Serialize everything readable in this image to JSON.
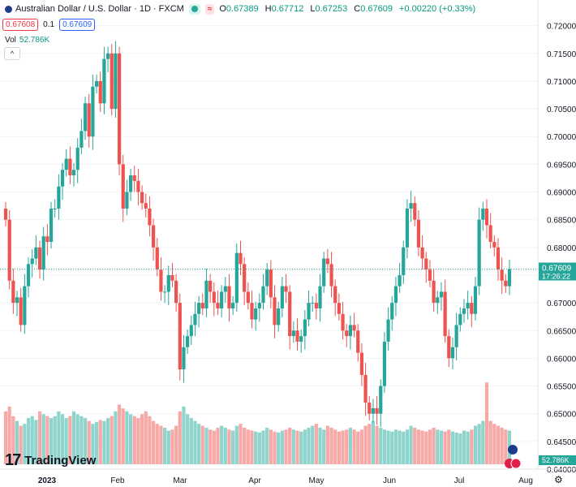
{
  "header": {
    "title": "Australian Dollar / U.S. Dollar · 1D · FXCM",
    "ohlc": [
      {
        "k": "O",
        "v": "0.67389"
      },
      {
        "k": "H",
        "v": "0.67712"
      },
      {
        "k": "L",
        "v": "0.67253"
      },
      {
        "k": "C",
        "v": "0.67609"
      },
      {
        "k": "",
        "v": "+0.00220 (+0.33%)"
      }
    ]
  },
  "trade": {
    "sell": "0.67608",
    "spread": "0.1",
    "buy": "0.67609"
  },
  "volume": {
    "label": "Vol",
    "value": "52.786K"
  },
  "colors": {
    "up": "#26a69a",
    "down": "#ef5350",
    "vol_up": "#8fd4cd",
    "vol_down": "#f7a9a7",
    "last": "#26a69a",
    "grid": "#f0f3fa"
  },
  "logo": {
    "text": "TradingView",
    "mark": "17"
  },
  "chart_data": {
    "type": "candlestick",
    "y_ticks": [
      "0.72000",
      "0.71500",
      "0.71000",
      "0.70500",
      "0.70000",
      "0.69500",
      "0.69000",
      "0.68500",
      "0.68000",
      "0.67500",
      "0.67000",
      "0.66500",
      "0.66000",
      "0.65500",
      "0.65000",
      "0.64500",
      "0.64000"
    ],
    "ylim": [
      0.64,
      0.722
    ],
    "x_labels": [
      "2023",
      "Feb",
      "Mar",
      "Apr",
      "May",
      "Jun",
      "Jul",
      "Aug"
    ],
    "last_price": "0.67609",
    "countdown": "17:26:22",
    "volume_badge": "52.786K",
    "closes": [
      0.685,
      0.674,
      0.67,
      0.671,
      0.666,
      0.673,
      0.677,
      0.678,
      0.68,
      0.676,
      0.682,
      0.681,
      0.687,
      0.687,
      0.691,
      0.694,
      0.696,
      0.693,
      0.694,
      0.698,
      0.701,
      0.706,
      0.7,
      0.709,
      0.71,
      0.706,
      0.714,
      0.715,
      0.705,
      0.715,
      0.695,
      0.687,
      0.69,
      0.693,
      0.692,
      0.69,
      0.688,
      0.687,
      0.684,
      0.68,
      0.676,
      0.672,
      0.672,
      0.675,
      0.674,
      0.67,
      0.658,
      0.662,
      0.664,
      0.666,
      0.668,
      0.67,
      0.669,
      0.674,
      0.672,
      0.67,
      0.669,
      0.672,
      0.673,
      0.669,
      0.67,
      0.679,
      0.677,
      0.672,
      0.67,
      0.667,
      0.669,
      0.67,
      0.673,
      0.676,
      0.671,
      0.666,
      0.669,
      0.673,
      0.672,
      0.664,
      0.665,
      0.663,
      0.664,
      0.667,
      0.67,
      0.67,
      0.669,
      0.673,
      0.678,
      0.677,
      0.673,
      0.67,
      0.668,
      0.665,
      0.664,
      0.666,
      0.665,
      0.661,
      0.657,
      0.652,
      0.65,
      0.651,
      0.65,
      0.655,
      0.663,
      0.667,
      0.67,
      0.673,
      0.675,
      0.68,
      0.687,
      0.688,
      0.685,
      0.68,
      0.678,
      0.676,
      0.674,
      0.67,
      0.671,
      0.672,
      0.664,
      0.66,
      0.662,
      0.666,
      0.668,
      0.669,
      0.67,
      0.668,
      0.673,
      0.685,
      0.687,
      0.684,
      0.681,
      0.68,
      0.676,
      0.674,
      0.673,
      0.6761
    ],
    "volumes": [
      0.55,
      0.6,
      0.5,
      0.45,
      0.4,
      0.42,
      0.48,
      0.5,
      0.46,
      0.55,
      0.52,
      0.5,
      0.48,
      0.5,
      0.55,
      0.52,
      0.48,
      0.5,
      0.55,
      0.52,
      0.5,
      0.48,
      0.45,
      0.42,
      0.44,
      0.46,
      0.45,
      0.48,
      0.5,
      0.55,
      0.62,
      0.58,
      0.55,
      0.52,
      0.5,
      0.48,
      0.52,
      0.55,
      0.5,
      0.45,
      0.42,
      0.4,
      0.38,
      0.35,
      0.36,
      0.4,
      0.55,
      0.6,
      0.52,
      0.48,
      0.45,
      0.42,
      0.4,
      0.38,
      0.36,
      0.35,
      0.38,
      0.4,
      0.38,
      0.36,
      0.35,
      0.4,
      0.42,
      0.38,
      0.36,
      0.35,
      0.34,
      0.33,
      0.35,
      0.38,
      0.36,
      0.34,
      0.33,
      0.35,
      0.36,
      0.38,
      0.36,
      0.35,
      0.34,
      0.36,
      0.38,
      0.4,
      0.42,
      0.38,
      0.36,
      0.4,
      0.38,
      0.36,
      0.34,
      0.35,
      0.36,
      0.38,
      0.36,
      0.34,
      0.36,
      0.4,
      0.42,
      0.45,
      0.4,
      0.38,
      0.36,
      0.35,
      0.34,
      0.36,
      0.35,
      0.34,
      0.36,
      0.4,
      0.38,
      0.36,
      0.35,
      0.34,
      0.36,
      0.38,
      0.36,
      0.35,
      0.34,
      0.36,
      0.34,
      0.33,
      0.32,
      0.35,
      0.34,
      0.36,
      0.4,
      0.42,
      0.45,
      0.85,
      0.45,
      0.42,
      0.4,
      0.38,
      0.36,
      0.35
    ]
  }
}
